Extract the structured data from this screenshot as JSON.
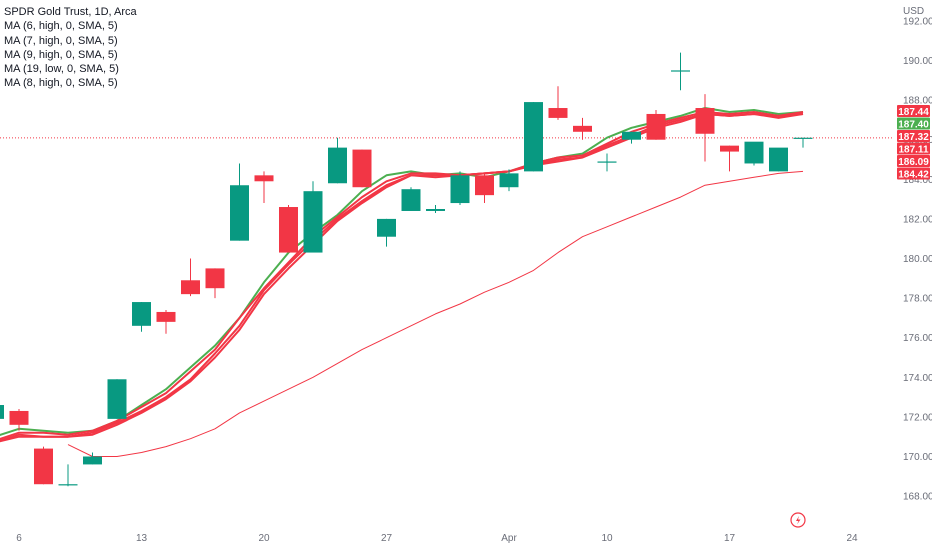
{
  "legend": {
    "title": "SPDR Gold Trust, 1D, Arca",
    "indicators": [
      "MA (6, high, 0, SMA, 5)",
      "MA (7, high, 0, SMA, 5)",
      "MA (9, high, 0, SMA, 5)",
      "MA (19, low, 0, SMA, 5)",
      "MA (8, high, 0, SMA, 5)"
    ]
  },
  "colors": {
    "up": "#089981",
    "down": "#f23645",
    "ma_green": "#4caf50",
    "ma_red": "#f23645",
    "ma_thin": "#f23645",
    "grid_text": "#6a6d78",
    "dotted_line": "#f23645"
  },
  "chart_data": {
    "type": "candlestick",
    "currency": "USD",
    "ylim": [
      167,
      193
    ],
    "y_ticks": [
      168.0,
      170.0,
      172.0,
      174.0,
      176.0,
      178.0,
      180.0,
      182.0,
      184.0,
      186.0,
      188.0,
      190.0,
      192.0
    ],
    "x_ticks": [
      "6",
      "13",
      "20",
      "27",
      "Apr",
      "10",
      "17",
      "24"
    ],
    "candles": [
      {
        "o": 171.9,
        "h": 172.5,
        "l": 171.4,
        "c": 172.6
      },
      {
        "o": 172.3,
        "h": 172.4,
        "l": 171.3,
        "c": 171.6
      },
      {
        "o": 170.4,
        "h": 170.5,
        "l": 168.6,
        "c": 168.6
      },
      {
        "o": 168.6,
        "h": 169.6,
        "l": 168.5,
        "c": 168.6
      },
      {
        "o": 169.6,
        "h": 170.2,
        "l": 169.6,
        "c": 170.0
      },
      {
        "o": 171.9,
        "h": 173.9,
        "l": 171.9,
        "c": 173.9
      },
      {
        "o": 176.6,
        "h": 177.8,
        "l": 176.3,
        "c": 177.8
      },
      {
        "o": 177.3,
        "h": 177.4,
        "l": 176.2,
        "c": 176.8
      },
      {
        "o": 178.9,
        "h": 180.0,
        "l": 178.1,
        "c": 178.2
      },
      {
        "o": 179.5,
        "h": 179.5,
        "l": 178.0,
        "c": 178.5
      },
      {
        "o": 180.9,
        "h": 184.8,
        "l": 180.9,
        "c": 183.7
      },
      {
        "o": 184.2,
        "h": 184.4,
        "l": 182.8,
        "c": 183.9
      },
      {
        "o": 182.6,
        "h": 182.7,
        "l": 180.3,
        "c": 180.3
      },
      {
        "o": 180.3,
        "h": 183.9,
        "l": 180.3,
        "c": 183.4
      },
      {
        "o": 183.8,
        "h": 186.1,
        "l": 183.8,
        "c": 185.6
      },
      {
        "o": 185.5,
        "h": 185.5,
        "l": 183.6,
        "c": 183.6
      },
      {
        "o": 181.1,
        "h": 182.0,
        "l": 180.6,
        "c": 182.0
      },
      {
        "o": 182.4,
        "h": 183.6,
        "l": 182.4,
        "c": 183.5
      },
      {
        "o": 182.4,
        "h": 182.7,
        "l": 182.3,
        "c": 182.5
      },
      {
        "o": 182.8,
        "h": 184.4,
        "l": 182.7,
        "c": 184.2
      },
      {
        "o": 184.2,
        "h": 184.3,
        "l": 182.8,
        "c": 183.2
      },
      {
        "o": 183.6,
        "h": 184.5,
        "l": 183.4,
        "c": 184.3
      },
      {
        "o": 184.4,
        "h": 187.9,
        "l": 184.4,
        "c": 187.9
      },
      {
        "o": 187.6,
        "h": 188.7,
        "l": 187.0,
        "c": 187.1
      },
      {
        "o": 186.7,
        "h": 187.1,
        "l": 186.0,
        "c": 186.4
      },
      {
        "o": 184.9,
        "h": 185.3,
        "l": 184.4,
        "c": 184.9
      },
      {
        "o": 186.0,
        "h": 186.4,
        "l": 185.8,
        "c": 186.4
      },
      {
        "o": 187.3,
        "h": 187.5,
        "l": 186.0,
        "c": 186.0
      },
      {
        "o": 189.5,
        "h": 190.4,
        "l": 188.5,
        "c": 189.5
      },
      {
        "o": 187.6,
        "h": 188.3,
        "l": 184.9,
        "c": 186.3
      },
      {
        "o": 185.7,
        "h": 185.7,
        "l": 184.4,
        "c": 185.4
      },
      {
        "o": 184.8,
        "h": 185.8,
        "l": 184.7,
        "c": 185.9
      },
      {
        "o": 184.4,
        "h": 185.5,
        "l": 184.4,
        "c": 185.6
      },
      {
        "o": 186.1,
        "h": 186.1,
        "l": 185.6,
        "c": 186.1
      }
    ],
    "ma_lines": [
      {
        "name": "MA (6, high, 0, SMA, 5)",
        "color": "#4caf50",
        "width": 2,
        "values": [
          171.0,
          171.4,
          171.3,
          171.2,
          171.3,
          171.8,
          172.6,
          173.4,
          174.5,
          175.6,
          177.0,
          178.8,
          180.3,
          181.3,
          182.2,
          183.4,
          184.2,
          184.4,
          184.2,
          184.3,
          184.1,
          184.4,
          184.8,
          185.1,
          185.3,
          186.1,
          186.6,
          186.9,
          187.2,
          187.6,
          187.4,
          187.5,
          187.3,
          187.4
        ]
      },
      {
        "name": "MA (7, high, 0, SMA, 5)",
        "color": "#f23645",
        "width": 2,
        "values": [
          170.8,
          171.2,
          171.2,
          171.1,
          171.3,
          171.8,
          172.5,
          173.2,
          174.3,
          175.4,
          177.0,
          178.5,
          179.8,
          181.1,
          182.1,
          183.1,
          183.9,
          184.3,
          184.3,
          184.2,
          184.3,
          184.4,
          184.8,
          185.1,
          185.2,
          185.8,
          186.4,
          186.8,
          187.1,
          187.4,
          187.3,
          187.4,
          187.2,
          187.4
        ]
      },
      {
        "name": "MA (9, high, 0, SMA, 5)",
        "color": "#f23645",
        "width": 2,
        "values": [
          170.7,
          171.0,
          171.0,
          171.0,
          171.1,
          171.6,
          172.2,
          172.9,
          173.8,
          175.0,
          176.4,
          178.2,
          179.5,
          180.7,
          181.9,
          182.8,
          183.6,
          184.2,
          184.1,
          184.2,
          184.3,
          184.4,
          184.7,
          184.9,
          185.1,
          185.6,
          186.1,
          186.6,
          186.9,
          187.3,
          187.2,
          187.3,
          187.1,
          187.3
        ]
      },
      {
        "name": "MA (19, low, 0, SMA, 5)",
        "color": "#f23645",
        "width": 1,
        "values": [
          null,
          null,
          null,
          170.6,
          170.0,
          170.0,
          170.2,
          170.5,
          170.9,
          171.4,
          172.2,
          172.8,
          173.4,
          174.0,
          174.7,
          175.4,
          176.0,
          176.6,
          177.2,
          177.7,
          178.3,
          178.8,
          179.4,
          180.3,
          181.1,
          181.6,
          182.1,
          182.6,
          183.1,
          183.7,
          183.9,
          184.1,
          184.3,
          184.4
        ]
      },
      {
        "name": "MA (8, high, 0, SMA, 5)",
        "color": "#f23645",
        "width": 2,
        "values": [
          170.7,
          171.1,
          171.0,
          171.0,
          171.2,
          171.7,
          172.3,
          173.0,
          173.9,
          175.2,
          176.6,
          178.4,
          179.7,
          180.9,
          182.0,
          182.9,
          183.7,
          184.2,
          184.2,
          184.2,
          184.3,
          184.4,
          184.7,
          185.0,
          185.1,
          185.7,
          186.2,
          186.7,
          187.0,
          187.3,
          187.2,
          187.3,
          187.2,
          187.3
        ]
      }
    ],
    "price_labels": [
      {
        "text": "187.44",
        "value": 187.44,
        "color": "#f23645"
      },
      {
        "text": "187.40",
        "value": 187.4,
        "color": "#4caf50"
      },
      {
        "text": "187.32",
        "value": 187.32,
        "color": "#f23645"
      },
      {
        "text": "187.11",
        "value": 187.11,
        "color": "#f23645"
      },
      {
        "text": "186.09",
        "value": 186.09,
        "color": "#f23645"
      },
      {
        "text": "184.42",
        "value": 184.42,
        "color": "#f23645"
      }
    ],
    "last_price": 186.09,
    "grid": false
  }
}
